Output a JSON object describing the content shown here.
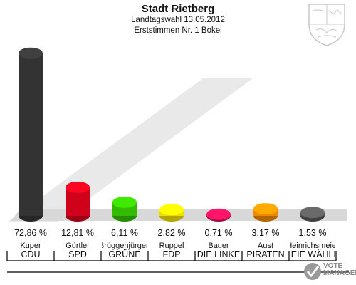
{
  "header": {
    "title": "Stadt Rietberg",
    "subtitle": "Landtagswahl 13.05.2012",
    "subtitle2": "Erststimmen Nr. 1 Bokel"
  },
  "logo": {
    "text_line1": "VOTE",
    "text_line2": "MANAGER",
    "icon": "checkmark-ballot-icon"
  },
  "crest": {
    "icon": "nrw-coat-of-arms-icon"
  },
  "chart_data": {
    "type": "bar",
    "categories": [
      "CDU",
      "SPD",
      "GRÜNE",
      "FDP",
      "DIE LINKE",
      "PIRATEN",
      "FREIE WÄHLER"
    ],
    "candidates": [
      "Kuper",
      "Gürtler",
      "Brüggenjürgen",
      "Ruppel",
      "Bauer",
      "Aust",
      "Heinrichsmeier"
    ],
    "values": [
      72.86,
      12.81,
      6.11,
      2.82,
      0.71,
      3.17,
      1.53
    ],
    "value_labels": [
      "72,86 %",
      "12,81 %",
      "6,11 %",
      "2,82 %",
      "0,71 %",
      "3,17 %",
      "1,53 %"
    ],
    "colors": [
      "#333333",
      "#d0021b",
      "#33bb00",
      "#eedd00",
      "#cc1155",
      "#ee8800",
      "#555555"
    ],
    "ylim": [
      0,
      75
    ],
    "title": "Stadt Rietberg"
  }
}
